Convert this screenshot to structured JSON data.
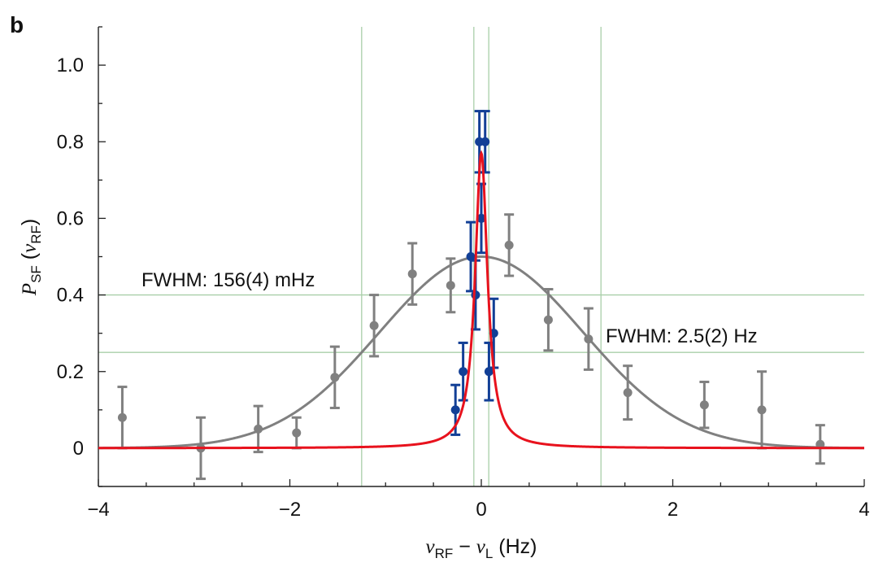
{
  "chart_data": {
    "type": "scatter",
    "panel_label": "b",
    "xlabel": {
      "symbol": "ν",
      "sub1": "RF",
      "minus": " − ",
      "symbol2": "ν",
      "sub2": "L",
      "unit": " (Hz)"
    },
    "ylabel": {
      "symbol": "P",
      "sub": "SF",
      "open": " (",
      "arg": "ν",
      "argsub": "RF",
      "close": ")"
    },
    "xlim": [
      -4,
      4
    ],
    "ylim": [
      -0.1,
      1.1
    ],
    "xticks": [
      -4,
      -2,
      0,
      2,
      4
    ],
    "xtick_labels": [
      "−4",
      "−2",
      "0",
      "2",
      "4"
    ],
    "yticks": [
      0,
      0.2,
      0.4,
      0.6,
      0.8,
      1.0
    ],
    "ytick_labels": [
      "0",
      "0.2",
      "0.4",
      "0.6",
      "0.8",
      "1.0"
    ],
    "reference_lines": {
      "vertical": [
        -1.25,
        -0.078,
        0.078,
        1.25
      ],
      "horizontal": [
        0.4,
        0.25
      ],
      "color": "#a9cfa9"
    },
    "annotations": [
      {
        "text": "FWHM: 156(4) mHz",
        "x": -3.6,
        "y": 0.435
      },
      {
        "text": "FWHM: 2.5(2) Hz",
        "x": 1.28,
        "y": 0.285
      }
    ],
    "series": [
      {
        "color": "#808080",
        "points": [
          {
            "x": -3.75,
            "y": 0.08,
            "err": 0.08
          },
          {
            "x": -2.93,
            "y": 0.0,
            "err": 0.08
          },
          {
            "x": -2.33,
            "y": 0.05,
            "err": 0.06
          },
          {
            "x": -1.93,
            "y": 0.04,
            "err": 0.04
          },
          {
            "x": -1.53,
            "y": 0.185,
            "err": 0.08
          },
          {
            "x": -1.12,
            "y": 0.32,
            "err": 0.08
          },
          {
            "x": -0.72,
            "y": 0.455,
            "err": 0.08
          },
          {
            "x": -0.32,
            "y": 0.425,
            "err": 0.07
          },
          {
            "x": 0.29,
            "y": 0.53,
            "err": 0.08
          },
          {
            "x": 0.7,
            "y": 0.335,
            "err": 0.08
          },
          {
            "x": 1.12,
            "y": 0.285,
            "err": 0.08
          },
          {
            "x": 1.53,
            "y": 0.145,
            "err": 0.07
          },
          {
            "x": 2.33,
            "y": 0.113,
            "err": 0.06
          },
          {
            "x": 2.93,
            "y": 0.1,
            "err": 0.1
          },
          {
            "x": 3.54,
            "y": 0.01,
            "err": 0.05
          }
        ],
        "fit": {
          "model": "gaussian",
          "amplitude": 0.5,
          "center": 0.0,
          "fwhm": 2.5
        }
      },
      {
        "color": "#123f96",
        "points": [
          {
            "x": -0.27,
            "y": 0.1,
            "err": 0.065
          },
          {
            "x": -0.19,
            "y": 0.2,
            "err": 0.075
          },
          {
            "x": -0.11,
            "y": 0.5,
            "err": 0.09
          },
          {
            "x": -0.06,
            "y": 0.4,
            "err": 0.09
          },
          {
            "x": -0.02,
            "y": 0.8,
            "err": 0.08
          },
          {
            "x": 0.0,
            "y": 0.6,
            "err": 0.09
          },
          {
            "x": 0.04,
            "y": 0.8,
            "err": 0.08
          },
          {
            "x": 0.08,
            "y": 0.2,
            "err": 0.075
          },
          {
            "x": 0.13,
            "y": 0.3,
            "err": 0.09
          }
        ],
        "fit": {
          "model": "lorentzian",
          "amplitude": 0.77,
          "center": 0.0,
          "fwhm": 0.156,
          "color": "#e8121d"
        }
      }
    ]
  }
}
